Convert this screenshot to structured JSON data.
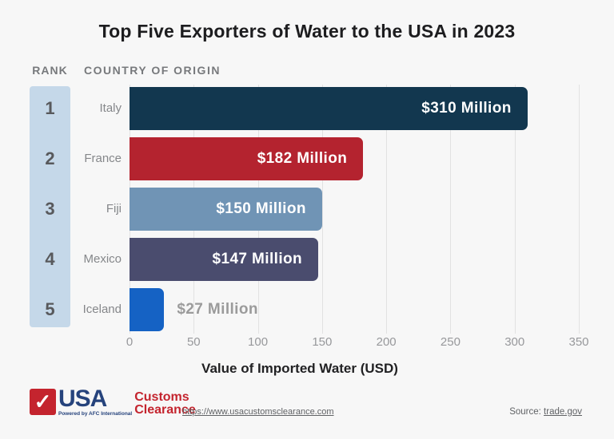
{
  "title": "Top Five Exporters of Water to the USA in 2023",
  "columns": {
    "rank": "RANK",
    "country": "COUNTRY OF ORIGIN"
  },
  "chart_data": {
    "type": "bar",
    "orientation": "horizontal",
    "title": "Top Five Exporters of Water to the USA in 2023",
    "categories": [
      "Italy",
      "France",
      "Fiji",
      "Mexico",
      "Iceland"
    ],
    "ranks": [
      1,
      2,
      3,
      4,
      5
    ],
    "values": [
      310,
      182,
      150,
      147,
      27
    ],
    "value_labels": [
      "$310 Million",
      "$182 Million",
      "$150 Million",
      "$147 Million",
      "$27 Million"
    ],
    "bar_colors": [
      "#12374f",
      "#b4232f",
      "#7094b5",
      "#4a4c6e",
      "#1562c4"
    ],
    "label_inside": [
      true,
      true,
      true,
      true,
      false
    ],
    "xlabel": "Value of Imported Water (USD)",
    "ylabel": "",
    "xlim": [
      0,
      350
    ],
    "xticks": [
      0,
      50,
      100,
      150,
      200,
      250,
      300,
      350
    ],
    "grid": "vertical",
    "legend": "none"
  },
  "colors": {
    "background": "#f7f7f7",
    "rank_strip": "#c5d8e9",
    "gridline": "#e2e2e2",
    "title_text": "#1d1d1f",
    "header_text": "#77797c",
    "rank_number": "#58595c",
    "country_label": "#85878a",
    "tick_label": "#97989b",
    "outside_value_label": "#9b9b9b",
    "logo_blue": "#26437c",
    "logo_red": "#c4242e"
  },
  "footer": {
    "logo": {
      "check": "✓",
      "usa": "USA",
      "powered": "Powered by AFC International",
      "customs_line1": "Customs",
      "customs_line2": "Clearance"
    },
    "website": "https://www.usacustomsclearance.com",
    "source_prefix": "Source:",
    "source_link": "trade.gov"
  }
}
